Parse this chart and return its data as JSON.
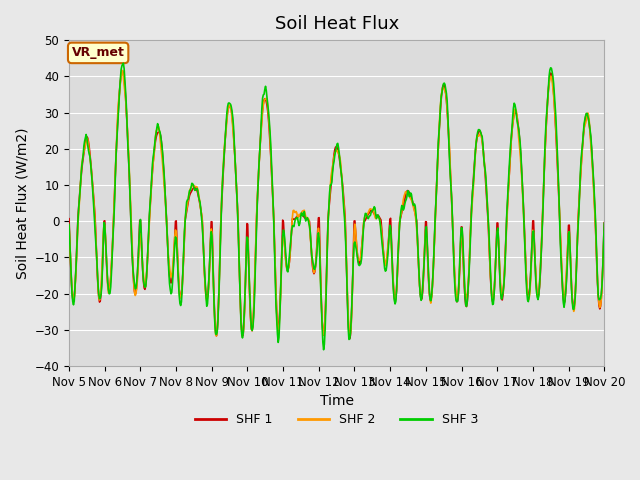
{
  "title": "Soil Heat Flux",
  "ylabel": "Soil Heat Flux (W/m2)",
  "xlabel": "Time",
  "ylim": [
    -40,
    50
  ],
  "yticks": [
    -40,
    -30,
    -20,
    -10,
    0,
    10,
    20,
    30,
    40,
    50
  ],
  "xtick_labels": [
    "Nov 5",
    "Nov 6",
    "Nov 7",
    "Nov 8",
    "Nov 9",
    "Nov 10",
    "Nov 11",
    "Nov 12",
    "Nov 13",
    "Nov 14",
    "Nov 15",
    "Nov 16",
    "Nov 17",
    "Nov 18",
    "Nov 19",
    "Nov 20"
  ],
  "legend_entries": [
    "SHF 1",
    "SHF 2",
    "SHF 3"
  ],
  "colors": [
    "#cc0000",
    "#ff9900",
    "#00cc00"
  ],
  "bg_color": "#e8e8e8",
  "plot_bg_color": "#dcdcdc",
  "annotation_text": "VR_met",
  "annotation_bg": "#ffffcc",
  "annotation_border": "#cc6600",
  "annotation_text_color": "#660000",
  "n_days": 15,
  "points_per_day": 48,
  "title_fontsize": 13,
  "axis_label_fontsize": 10,
  "tick_fontsize": 8.5,
  "legend_fontsize": 9,
  "line_width": 1.2
}
